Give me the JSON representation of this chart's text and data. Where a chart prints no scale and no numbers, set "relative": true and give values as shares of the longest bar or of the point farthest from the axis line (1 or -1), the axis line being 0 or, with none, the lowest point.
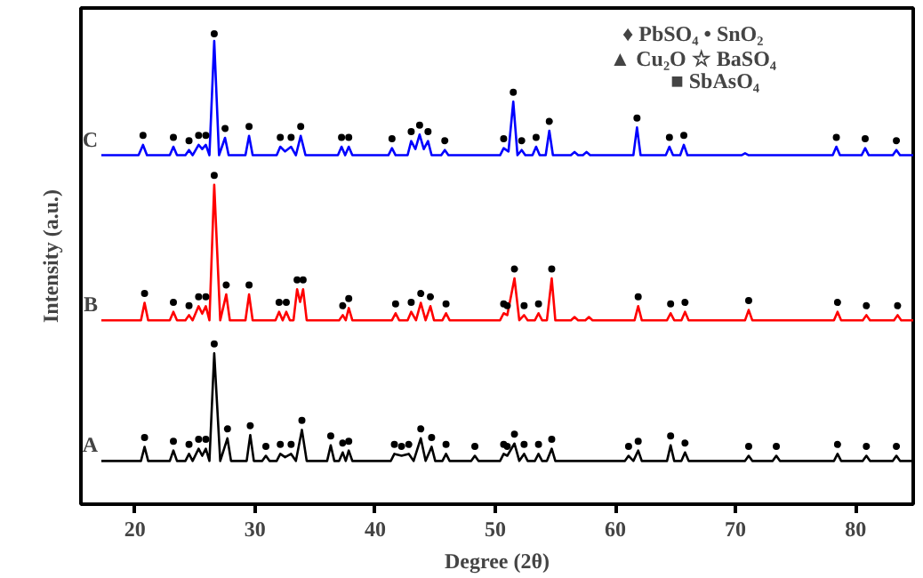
{
  "chart_data": {
    "type": "line",
    "relative": true,
    "xlabel": "Degree (2θ)",
    "ylabel": "Intensity (a.u.)",
    "xlim": [
      15.5,
      84.8
    ],
    "xticks": [
      20,
      30,
      40,
      50,
      60,
      70,
      80
    ],
    "grid": false,
    "annotations": [
      "♦ PbSO₄   • SnO₂",
      "▲ Cu₂O   ☆ BaSO₄",
      "■ SbAsO₄"
    ],
    "series": [
      {
        "name": "A",
        "color": "#000000",
        "x": [
          17.2,
          20.5,
          20.8,
          21.1,
          22.9,
          23.2,
          23.5,
          24.2,
          24.5,
          24.8,
          25.3,
          25.6,
          25.9,
          26.2,
          26.6,
          27.1,
          27.7,
          28.0,
          29.3,
          29.6,
          29.9,
          30.6,
          30.9,
          31.2,
          31.8,
          32.1,
          32.5,
          33.0,
          33.4,
          33.9,
          34.3,
          36.0,
          36.3,
          36.6,
          37.0,
          37.3,
          37.55,
          37.8,
          38.1,
          41.3,
          41.6,
          42.2,
          42.8,
          43.2,
          43.8,
          44.2,
          44.7,
          45.0,
          45.6,
          45.9,
          46.2,
          48.0,
          48.3,
          48.6,
          50.4,
          50.7,
          51.0,
          51.6,
          52.0,
          52.4,
          52.7,
          53.3,
          53.6,
          53.9,
          54.3,
          54.7,
          55.0,
          60.8,
          61.1,
          61.5,
          61.9,
          62.2,
          64.3,
          64.6,
          64.9,
          65.5,
          65.8,
          66.1,
          70.8,
          71.1,
          71.4,
          73.1,
          73.4,
          73.7,
          78.2,
          78.5,
          78.8,
          80.6,
          80.9,
          81.2,
          83.1,
          83.4,
          83.7,
          84.8
        ],
        "values": [
          0.092,
          0.092,
          0.122,
          0.092,
          0.092,
          0.114,
          0.092,
          0.092,
          0.107,
          0.092,
          0.118,
          0.103,
          0.118,
          0.092,
          0.321,
          0.092,
          0.14,
          0.092,
          0.092,
          0.147,
          0.092,
          0.092,
          0.103,
          0.092,
          0.092,
          0.107,
          0.1,
          0.107,
          0.092,
          0.158,
          0.092,
          0.092,
          0.125,
          0.092,
          0.092,
          0.11,
          0.092,
          0.114,
          0.092,
          0.092,
          0.107,
          0.103,
          0.107,
          0.092,
          0.14,
          0.092,
          0.122,
          0.092,
          0.092,
          0.107,
          0.092,
          0.092,
          0.103,
          0.092,
          0.092,
          0.107,
          0.103,
          0.129,
          0.092,
          0.107,
          0.092,
          0.092,
          0.107,
          0.092,
          0.092,
          0.118,
          0.092,
          0.092,
          0.103,
          0.092,
          0.114,
          0.092,
          0.092,
          0.125,
          0.092,
          0.092,
          0.11,
          0.092,
          0.092,
          0.103,
          0.092,
          0.092,
          0.103,
          0.092,
          0.092,
          0.107,
          0.092,
          0.092,
          0.103,
          0.092,
          0.092,
          0.103,
          0.092,
          0.092
        ]
      },
      {
        "name": "B",
        "color": "#ff0000",
        "x": [
          17.2,
          20.5,
          20.8,
          21.1,
          22.9,
          23.2,
          23.5,
          24.2,
          24.5,
          24.8,
          25.3,
          25.6,
          25.9,
          26.2,
          26.6,
          27.1,
          27.6,
          27.9,
          29.2,
          29.5,
          29.8,
          31.7,
          32.0,
          32.3,
          32.6,
          32.9,
          33.2,
          33.5,
          33.75,
          34.0,
          34.3,
          37.0,
          37.3,
          37.55,
          37.8,
          38.1,
          41.4,
          41.7,
          42.0,
          42.7,
          43.0,
          43.4,
          43.8,
          44.2,
          44.6,
          44.9,
          45.6,
          45.9,
          46.2,
          50.4,
          50.7,
          51.0,
          51.6,
          52.0,
          52.4,
          52.7,
          53.3,
          53.6,
          53.9,
          54.3,
          54.7,
          55.0,
          56.3,
          56.6,
          56.9,
          57.5,
          57.8,
          58.1,
          61.6,
          61.9,
          62.2,
          64.3,
          64.6,
          64.9,
          65.5,
          65.8,
          66.1,
          70.8,
          71.1,
          71.4,
          78.2,
          78.5,
          78.8,
          80.6,
          80.9,
          81.2,
          83.2,
          83.5,
          83.8,
          84.8
        ],
        "values": [
          0.391,
          0.391,
          0.428,
          0.391,
          0.391,
          0.409,
          0.391,
          0.391,
          0.402,
          0.391,
          0.421,
          0.405,
          0.421,
          0.391,
          0.679,
          0.391,
          0.446,
          0.391,
          0.391,
          0.446,
          0.391,
          0.391,
          0.409,
          0.391,
          0.409,
          0.391,
          0.391,
          0.457,
          0.43,
          0.457,
          0.391,
          0.391,
          0.402,
          0.391,
          0.417,
          0.391,
          0.391,
          0.406,
          0.391,
          0.391,
          0.409,
          0.391,
          0.428,
          0.391,
          0.421,
          0.391,
          0.391,
          0.406,
          0.391,
          0.391,
          0.406,
          0.402,
          0.48,
          0.391,
          0.402,
          0.391,
          0.391,
          0.406,
          0.391,
          0.391,
          0.48,
          0.391,
          0.391,
          0.398,
          0.391,
          0.391,
          0.398,
          0.391,
          0.391,
          0.421,
          0.391,
          0.391,
          0.406,
          0.391,
          0.391,
          0.409,
          0.391,
          0.391,
          0.413,
          0.391,
          0.391,
          0.409,
          0.391,
          0.391,
          0.402,
          0.391,
          0.391,
          0.402,
          0.391,
          0.391
        ]
      },
      {
        "name": "C",
        "color": "#0000ff",
        "x": [
          17.2,
          20.3,
          20.67,
          21.0,
          22.9,
          23.2,
          23.5,
          24.2,
          24.5,
          24.8,
          25.3,
          25.6,
          25.9,
          26.2,
          26.6,
          27.0,
          27.5,
          27.8,
          29.2,
          29.5,
          29.8,
          31.8,
          32.1,
          32.5,
          33.0,
          33.4,
          33.8,
          34.2,
          36.9,
          37.2,
          37.5,
          37.8,
          38.1,
          41.1,
          41.4,
          41.7,
          42.7,
          43.0,
          43.35,
          43.7,
          44.05,
          44.4,
          44.7,
          45.5,
          45.8,
          46.1,
          50.4,
          50.7,
          51.1,
          51.5,
          51.85,
          52.2,
          52.5,
          53.1,
          53.4,
          53.7,
          54.2,
          54.5,
          54.8,
          56.3,
          56.6,
          56.9,
          57.3,
          57.6,
          57.9,
          61.5,
          61.8,
          62.1,
          64.2,
          64.5,
          64.8,
          65.4,
          65.7,
          66.0,
          70.5,
          70.8,
          71.1,
          78.1,
          78.4,
          78.7,
          80.5,
          80.8,
          81.1,
          83.1,
          83.4,
          83.7,
          84.8
        ],
        "values": [
          0.742,
          0.742,
          0.764,
          0.742,
          0.742,
          0.76,
          0.742,
          0.742,
          0.753,
          0.742,
          0.764,
          0.755,
          0.764,
          0.742,
          0.985,
          0.742,
          0.779,
          0.742,
          0.742,
          0.783,
          0.742,
          0.742,
          0.76,
          0.75,
          0.76,
          0.742,
          0.783,
          0.742,
          0.742,
          0.76,
          0.742,
          0.76,
          0.742,
          0.742,
          0.757,
          0.742,
          0.742,
          0.772,
          0.755,
          0.786,
          0.755,
          0.772,
          0.742,
          0.742,
          0.753,
          0.742,
          0.742,
          0.757,
          0.75,
          0.856,
          0.742,
          0.753,
          0.742,
          0.742,
          0.76,
          0.742,
          0.742,
          0.794,
          0.742,
          0.742,
          0.749,
          0.742,
          0.742,
          0.749,
          0.742,
          0.742,
          0.801,
          0.742,
          0.742,
          0.76,
          0.742,
          0.742,
          0.764,
          0.742,
          0.742,
          0.746,
          0.742,
          0.742,
          0.76,
          0.742,
          0.742,
          0.757,
          0.742,
          0.742,
          0.753,
          0.742,
          0.742
        ]
      },
      {
        "type": "scatter",
        "color": "#000000",
        "marker": "circle",
        "x": [
          20.8,
          23.2,
          24.5,
          25.3,
          25.9,
          26.6,
          27.7,
          29.6,
          30.9,
          32.1,
          33.0,
          33.9,
          36.3,
          37.3,
          37.8,
          41.6,
          42.2,
          42.8,
          43.8,
          44.7,
          45.9,
          48.3,
          50.7,
          51.0,
          51.6,
          52.4,
          53.6,
          54.7,
          61.1,
          61.9,
          64.6,
          65.8,
          71.1,
          73.4,
          78.5,
          80.9,
          83.4,
          20.8,
          23.2,
          24.5,
          25.3,
          25.9,
          26.6,
          27.6,
          29.5,
          32.0,
          32.6,
          33.5,
          34.0,
          37.3,
          37.8,
          41.7,
          43.0,
          43.8,
          44.6,
          45.9,
          50.7,
          51.0,
          51.6,
          52.4,
          53.6,
          54.7,
          61.9,
          64.6,
          65.8,
          71.1,
          78.5,
          80.9,
          83.5,
          20.67,
          23.2,
          24.5,
          25.3,
          25.9,
          26.6,
          27.5,
          29.5,
          32.1,
          33.0,
          33.8,
          37.2,
          37.8,
          41.4,
          43.0,
          43.7,
          44.4,
          45.8,
          50.7,
          51.5,
          52.2,
          53.4,
          54.5,
          61.8,
          64.5,
          65.7,
          78.4,
          80.8,
          83.4
        ],
        "values": [
          0.142,
          0.134,
          0.127,
          0.138,
          0.138,
          0.341,
          0.16,
          0.167,
          0.123,
          0.127,
          0.127,
          0.178,
          0.145,
          0.13,
          0.134,
          0.127,
          0.123,
          0.127,
          0.16,
          0.142,
          0.127,
          0.123,
          0.127,
          0.123,
          0.149,
          0.127,
          0.127,
          0.138,
          0.123,
          0.134,
          0.145,
          0.13,
          0.123,
          0.123,
          0.127,
          0.123,
          0.123,
          0.448,
          0.429,
          0.422,
          0.441,
          0.441,
          0.699,
          0.466,
          0.466,
          0.429,
          0.429,
          0.477,
          0.477,
          0.422,
          0.437,
          0.426,
          0.429,
          0.448,
          0.441,
          0.426,
          0.426,
          0.422,
          0.5,
          0.422,
          0.426,
          0.5,
          0.441,
          0.426,
          0.429,
          0.433,
          0.429,
          0.422,
          0.422,
          0.784,
          0.78,
          0.773,
          0.784,
          0.784,
          1.0,
          0.799,
          0.803,
          0.78,
          0.78,
          0.803,
          0.78,
          0.78,
          0.777,
          0.792,
          0.806,
          0.792,
          0.773,
          0.777,
          0.876,
          0.773,
          0.78,
          0.814,
          0.821,
          0.78,
          0.784,
          0.78,
          0.777,
          0.773
        ]
      }
    ]
  }
}
